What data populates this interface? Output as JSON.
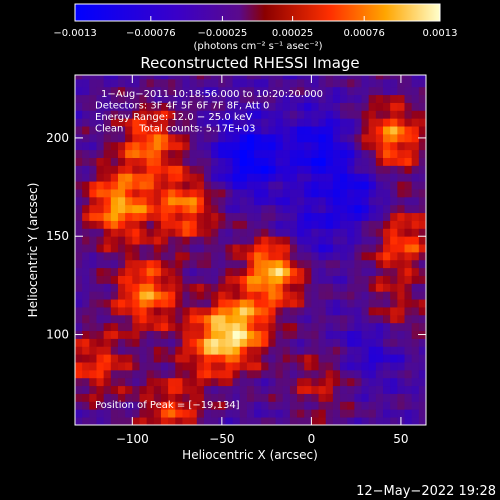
{
  "chart_data": {
    "type": "heatmap",
    "title": "Reconstructed RHESSI Image",
    "xlabel": "Heliocentric X (arcsec)",
    "ylabel": "Heliocentric Y (arcsec)",
    "xlim": [
      -132,
      64
    ],
    "ylim": [
      54,
      232
    ],
    "x_ticks": [
      -100,
      -50,
      0,
      50
    ],
    "x_tick_labels": [
      "−100",
      "−50",
      "0",
      "50"
    ],
    "y_ticks": [
      100,
      150,
      200
    ],
    "y_tick_labels": [
      "100",
      "150",
      "200"
    ],
    "colorbar": {
      "min": -0.0013,
      "max": 0.0013,
      "ticks": [
        -0.0013,
        -0.00076,
        -0.00025,
        0.00025,
        0.00076,
        0.0013
      ],
      "tick_labels": [
        "−0.0013",
        "−0.00076",
        "−0.00025",
        "0.00025",
        "0.00076",
        "0.0013"
      ],
      "unit_label": "(photons cm⁻² s⁻¹ asec⁻²)",
      "colors": [
        "#0000ff",
        "#4b0082",
        "#8b0000",
        "#ff4500",
        "#ffa500",
        "#ffff99"
      ]
    },
    "annotations": [
      "1−Aug−2011 10:18:56.000 to 10:20:20.000",
      "Detectors: 3F 4F 5F 6F 7F 8F, Att 0",
      "Energy Range: 12.0 − 25.0 keV",
      "Clean     Total counts: 5.17E+03"
    ],
    "peak_label": "Position of Peak = [−19,134]",
    "peak": [
      -19,
      134
    ],
    "hot_spots": [
      {
        "x": -20,
        "y": 134,
        "value": 0.0013
      },
      {
        "x": -108,
        "y": 166,
        "value": 0.0011
      },
      {
        "x": -92,
        "y": 121,
        "value": 0.001
      },
      {
        "x": -40,
        "y": 104,
        "value": 0.001
      },
      {
        "x": -90,
        "y": 198,
        "value": 0.0009
      },
      {
        "x": 45,
        "y": 200,
        "value": 0.001
      },
      {
        "x": -70,
        "y": 165,
        "value": 0.0009
      },
      {
        "x": -55,
        "y": 95,
        "value": 0.0008
      },
      {
        "x": 50,
        "y": 148,
        "value": 0.0008
      },
      {
        "x": -78,
        "y": 62,
        "value": 0.0007
      },
      {
        "x": -120,
        "y": 85,
        "value": 0.0007
      },
      {
        "x": 45,
        "y": 110,
        "value": 0.0006
      },
      {
        "x": 5,
        "y": 75,
        "value": 0.0005
      }
    ],
    "cold_spots": [
      {
        "x": -35,
        "y": 190,
        "value": -0.001
      },
      {
        "x": 5,
        "y": 195,
        "value": -0.0008
      },
      {
        "x": -5,
        "y": 150,
        "value": -0.0006
      },
      {
        "x": 25,
        "y": 170,
        "value": -0.0007
      },
      {
        "x": 35,
        "y": 95,
        "value": -0.0006
      }
    ]
  },
  "footer": {
    "timestamp": "12−May−2022 19:28"
  }
}
